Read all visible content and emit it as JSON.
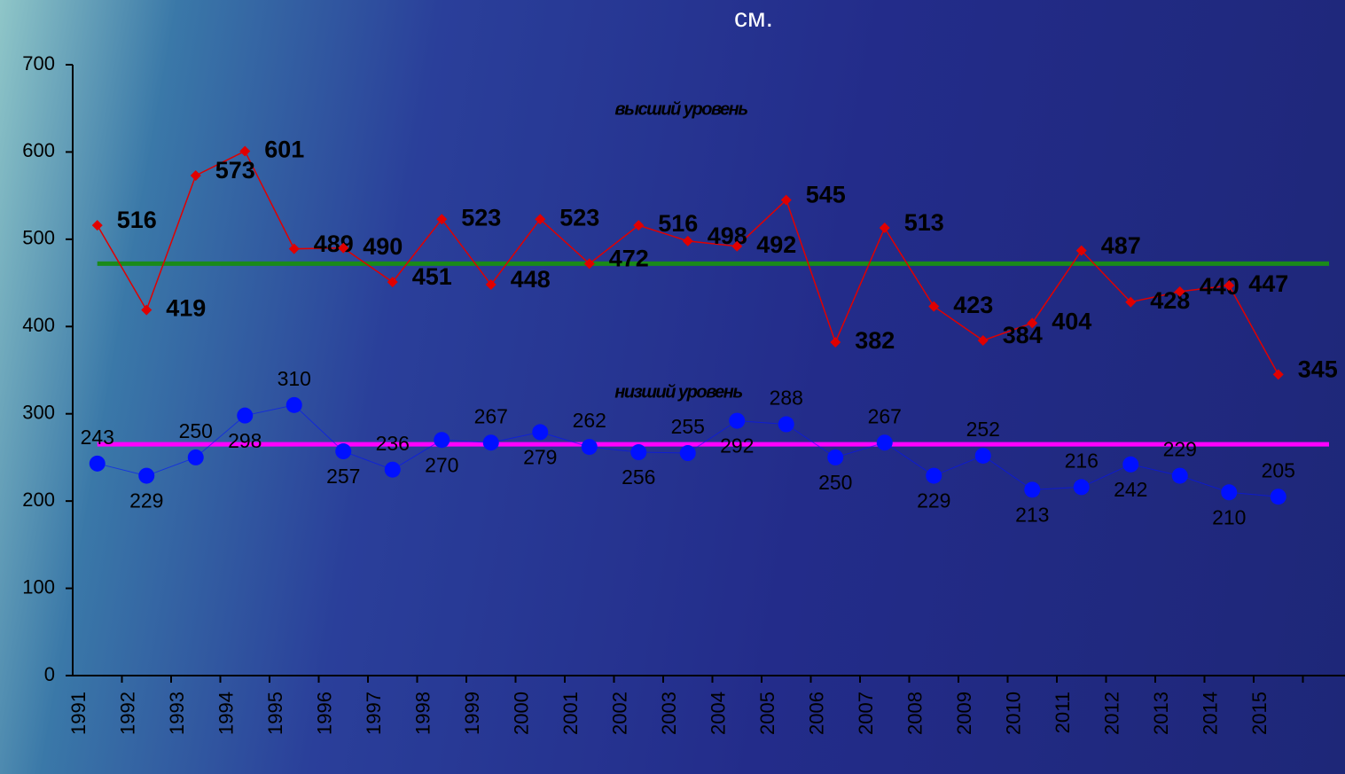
{
  "chart_data": {
    "type": "line",
    "title": "см.",
    "annotations": [
      "высший уровень",
      "низший уровень"
    ],
    "categories": [
      "1991",
      "1992",
      "1993",
      "1994",
      "1995",
      "1996",
      "1997",
      "1998",
      "1999",
      "2000",
      "2001",
      "2002",
      "2003",
      "2004",
      "2005",
      "2006",
      "2007",
      "2008",
      "2009",
      "2010",
      "2011",
      "2012",
      "2013",
      "2014",
      "2015"
    ],
    "series": [
      {
        "color": "#e00000",
        "marker": "diamond",
        "values": [
          516,
          419,
          573,
          601,
          489,
          490,
          451,
          523,
          448,
          523,
          472,
          516,
          498,
          492,
          545,
          382,
          513,
          423,
          384,
          404,
          487,
          428,
          440,
          447,
          345
        ]
      },
      {
        "color": "#0010ff",
        "marker": "circle",
        "values": [
          243,
          229,
          250,
          298,
          310,
          257,
          236,
          270,
          267,
          279,
          262,
          256,
          255,
          292,
          288,
          250,
          267,
          229,
          252,
          213,
          216,
          242,
          229,
          210,
          205
        ]
      }
    ],
    "reference_lines": [
      {
        "value": 472,
        "color": "#1a8a1a"
      },
      {
        "value": 265,
        "color": "#ff00ff"
      }
    ],
    "ylim": [
      0,
      700
    ],
    "yticks": [
      0,
      100,
      200,
      300,
      400,
      500,
      600,
      700
    ]
  }
}
